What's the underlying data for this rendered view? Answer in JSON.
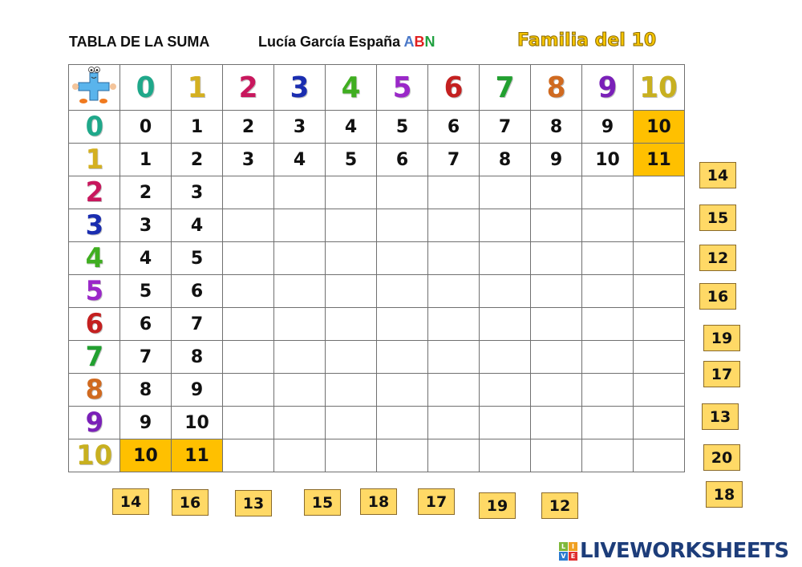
{
  "header": {
    "title": "TABLA DE LA SUMA",
    "author": "Lucía García España",
    "abn": [
      "A",
      "B",
      "N"
    ],
    "subtitle": "Familia del 10"
  },
  "colors": {
    "highlight": "#ffc000",
    "tile": "#ffd966",
    "digit_colors": [
      "#1fa88a",
      "#d4b020",
      "#c8175d",
      "#1a2db0",
      "#3fae20",
      "#9a28c8",
      "#c42020",
      "#22a030",
      "#d06a20",
      "#7a20b8",
      "#c8b020"
    ]
  },
  "table": {
    "corner_icon": "plus-mascot-icon",
    "col_headers": [
      "0",
      "1",
      "2",
      "3",
      "4",
      "5",
      "6",
      "7",
      "8",
      "9",
      "10"
    ],
    "row_headers": [
      "0",
      "1",
      "2",
      "3",
      "4",
      "5",
      "6",
      "7",
      "8",
      "9",
      "10"
    ],
    "rows": [
      [
        "0",
        "1",
        "2",
        "3",
        "4",
        "5",
        "6",
        "7",
        "8",
        "9",
        "10"
      ],
      [
        "1",
        "2",
        "3",
        "4",
        "5",
        "6",
        "7",
        "8",
        "9",
        "10",
        "11"
      ],
      [
        "2",
        "3",
        "",
        "",
        "",
        "",
        "",
        "",
        "",
        "",
        ""
      ],
      [
        "3",
        "4",
        "",
        "",
        "",
        "",
        "",
        "",
        "",
        "",
        ""
      ],
      [
        "4",
        "5",
        "",
        "",
        "",
        "",
        "",
        "",
        "",
        "",
        ""
      ],
      [
        "5",
        "6",
        "",
        "",
        "",
        "",
        "",
        "",
        "",
        "",
        ""
      ],
      [
        "6",
        "7",
        "",
        "",
        "",
        "",
        "",
        "",
        "",
        "",
        ""
      ],
      [
        "7",
        "8",
        "",
        "",
        "",
        "",
        "",
        "",
        "",
        "",
        ""
      ],
      [
        "8",
        "9",
        "",
        "",
        "",
        "",
        "",
        "",
        "",
        "",
        ""
      ],
      [
        "9",
        "10",
        "",
        "",
        "",
        "",
        "",
        "",
        "",
        "",
        ""
      ],
      [
        "10",
        "11",
        "",
        "",
        "",
        "",
        "",
        "",
        "",
        "",
        ""
      ]
    ]
  },
  "tiles_right": [
    "14",
    "15",
    "12",
    "16",
    "19",
    "17",
    "13",
    "20",
    "18"
  ],
  "tiles_bottom": [
    "14",
    "16",
    "13",
    "15",
    "18",
    "17",
    "19",
    "12"
  ],
  "logo": {
    "blocks": [
      "L",
      "I",
      "V",
      "E"
    ],
    "text": "LIVEWORKSHEETS"
  }
}
